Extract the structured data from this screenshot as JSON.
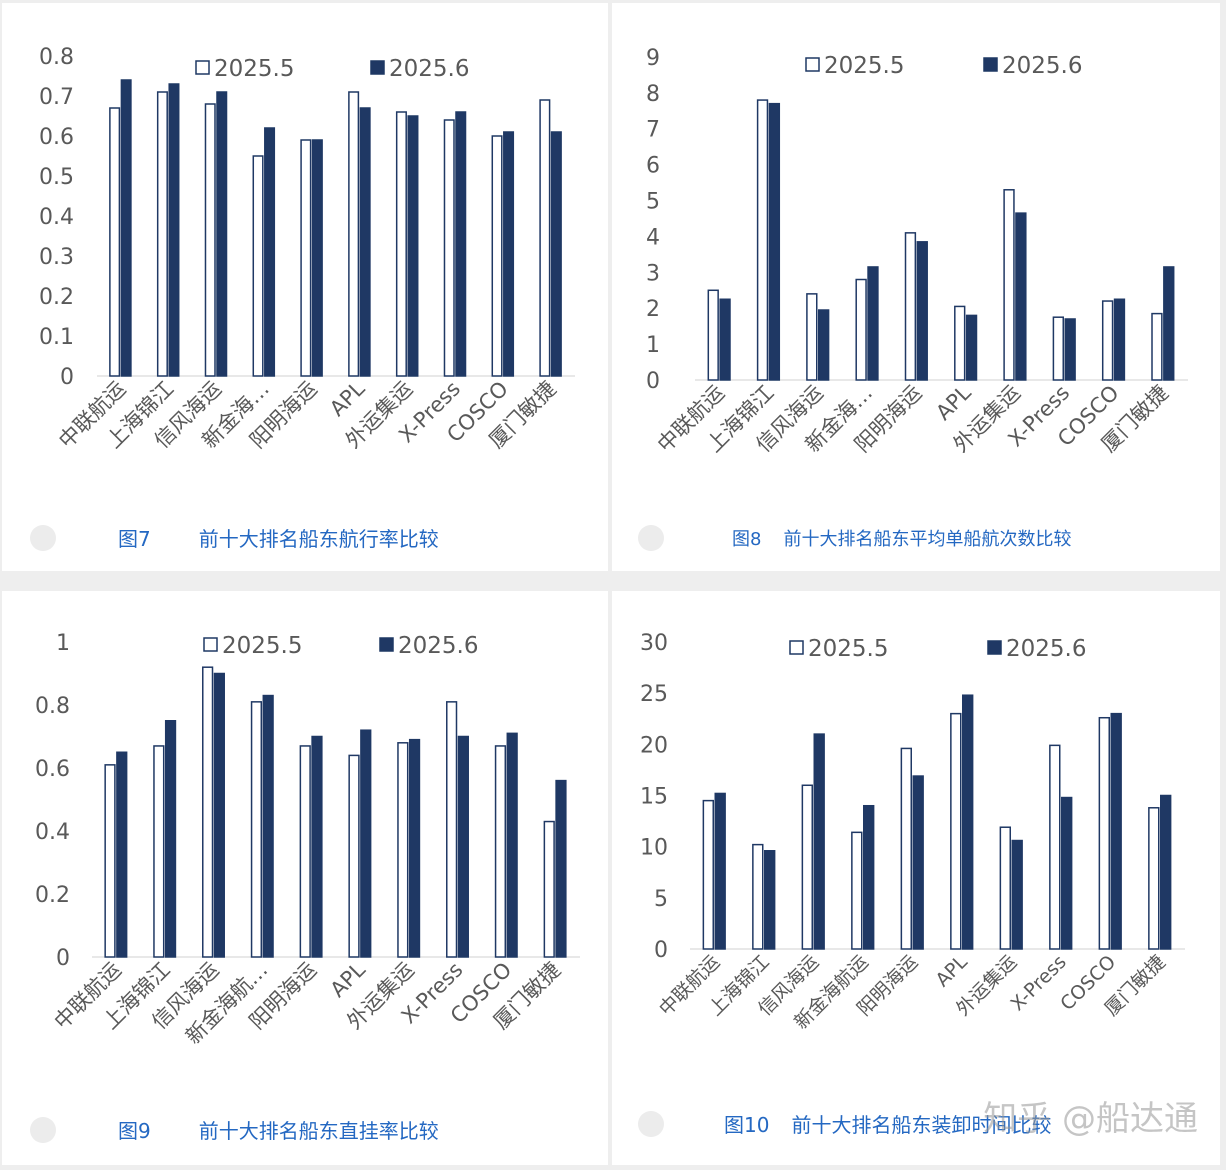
{
  "chart_data": [
    {
      "type": "bar",
      "categories": [
        "中联航运",
        "上海锦江",
        "信风海运",
        "新金海…",
        "阳明海运",
        "APL",
        "外运集运",
        "X-Press",
        "COSCO",
        "厦门敏捷"
      ],
      "series": [
        {
          "name": "2025.5",
          "values": [
            0.67,
            0.71,
            0.68,
            0.55,
            0.59,
            0.71,
            0.66,
            0.64,
            0.6,
            0.69
          ]
        },
        {
          "name": "2025.6",
          "values": [
            0.74,
            0.73,
            0.71,
            0.62,
            0.59,
            0.67,
            0.65,
            0.66,
            0.61,
            0.61
          ]
        }
      ],
      "yticks": [
        "0",
        "0.1",
        "0.2",
        "0.3",
        "0.4",
        "0.5",
        "0.6",
        "0.7",
        "0.8"
      ],
      "ylim": [
        0,
        0.8
      ],
      "caption_num": "图7",
      "caption_text": "前十大排名船东航行率比较",
      "legend_position": "top"
    },
    {
      "type": "bar",
      "categories": [
        "中联航运",
        "上海锦江",
        "信风海运",
        "新金海…",
        "阳明海运",
        "APL",
        "外运集运",
        "X-Press",
        "COSCO",
        "厦门敏捷"
      ],
      "series": [
        {
          "name": "2025.5",
          "values": [
            2.5,
            7.8,
            2.4,
            2.8,
            4.1,
            2.05,
            5.3,
            1.75,
            2.2,
            1.85
          ]
        },
        {
          "name": "2025.6",
          "values": [
            2.25,
            7.7,
            1.95,
            3.15,
            3.85,
            1.8,
            4.65,
            1.7,
            2.25,
            3.15
          ]
        }
      ],
      "yticks": [
        "0",
        "1",
        "2",
        "3",
        "4",
        "5",
        "6",
        "7",
        "8",
        "9"
      ],
      "ylim": [
        0,
        9
      ],
      "caption_num": "图8",
      "caption_text": "前十大排名船东平均单船航次数比较",
      "legend_position": "top"
    },
    {
      "type": "bar",
      "categories": [
        "中联航运",
        "上海锦江",
        "信风海运",
        "新金海航…",
        "阳明海运",
        "APL",
        "外运集运",
        "X-Press",
        "COSCO",
        "厦门敏捷"
      ],
      "series": [
        {
          "name": "2025.5",
          "values": [
            0.61,
            0.67,
            0.92,
            0.81,
            0.67,
            0.64,
            0.68,
            0.81,
            0.67,
            0.43
          ]
        },
        {
          "name": "2025.6",
          "values": [
            0.65,
            0.75,
            0.9,
            0.83,
            0.7,
            0.72,
            0.69,
            0.7,
            0.71,
            0.56
          ]
        }
      ],
      "yticks": [
        "0",
        "0.2",
        "0.4",
        "0.6",
        "0.8",
        "1"
      ],
      "ylim": [
        0,
        1
      ],
      "caption_num": "图9",
      "caption_text": "前十大排名船东直挂率比较",
      "legend_position": "top"
    },
    {
      "type": "bar",
      "categories": [
        "中联航运",
        "上海锦江",
        "信风海运",
        "新金海航运",
        "阳明海运",
        "APL",
        "外运集运",
        "X-Press",
        "COSCO",
        "厦门敏捷"
      ],
      "series": [
        {
          "name": "2025.5",
          "values": [
            14.5,
            10.2,
            16.0,
            11.4,
            19.6,
            23.0,
            11.9,
            19.9,
            22.6,
            13.8
          ]
        },
        {
          "name": "2025.6",
          "values": [
            15.2,
            9.6,
            21.0,
            14.0,
            16.9,
            24.8,
            10.6,
            14.8,
            23.0,
            15.0
          ]
        }
      ],
      "yticks": [
        "0",
        "5",
        "10",
        "15",
        "20",
        "25",
        "30"
      ],
      "ylim": [
        0,
        30
      ],
      "caption_num": "图10",
      "caption_text": "前十大排名船东装卸时间比较",
      "legend_position": "top"
    }
  ],
  "colors": {
    "series_fill_1": "#ffffff",
    "series_fill_2": "#1f3864",
    "bar_stroke": "#1f3864",
    "axis_text": "#595959",
    "caption": "#2468c2"
  },
  "watermark": "知乎 @船达通"
}
